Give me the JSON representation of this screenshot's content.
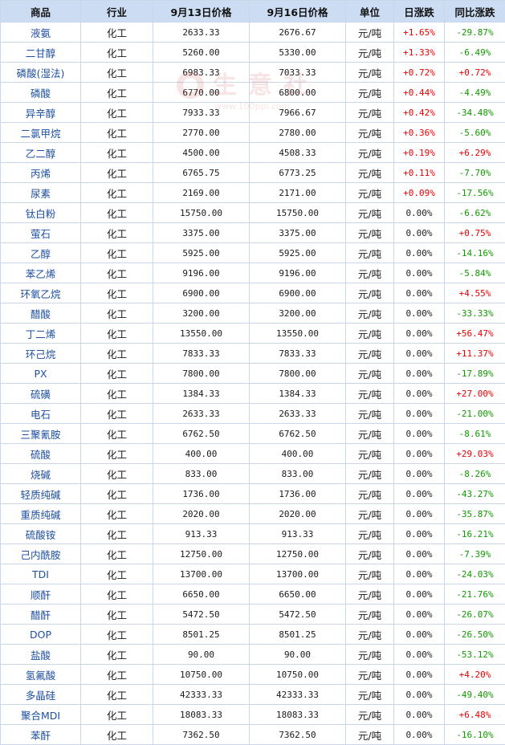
{
  "headers": [
    "商品",
    "行业",
    "9月13日价格",
    "9月16日价格",
    "单位",
    "日涨跌",
    "同比涨跌"
  ],
  "watermark": {
    "brand": "生意社",
    "url": "www.100ppi.com"
  },
  "colors": {
    "up": "#e60000",
    "down": "#109900",
    "header_bg": "#ccddf3",
    "border": "#c9d6e8",
    "name": "#1e4fa0"
  },
  "rows": [
    {
      "name": "液氨",
      "industry": "化工",
      "price_a": "2633.33",
      "price_b": "2676.67",
      "unit": "元/吨",
      "day": "+1.65%",
      "yoy": "-29.87%"
    },
    {
      "name": "二甘醇",
      "industry": "化工",
      "price_a": "5260.00",
      "price_b": "5330.00",
      "unit": "元/吨",
      "day": "+1.33%",
      "yoy": "-6.49%"
    },
    {
      "name": "磷酸(湿法)",
      "industry": "化工",
      "price_a": "6983.33",
      "price_b": "7033.33",
      "unit": "元/吨",
      "day": "+0.72%",
      "yoy": "+0.72%"
    },
    {
      "name": "磷酸",
      "industry": "化工",
      "price_a": "6770.00",
      "price_b": "6800.00",
      "unit": "元/吨",
      "day": "+0.44%",
      "yoy": "-4.49%"
    },
    {
      "name": "异辛醇",
      "industry": "化工",
      "price_a": "7933.33",
      "price_b": "7966.67",
      "unit": "元/吨",
      "day": "+0.42%",
      "yoy": "-34.48%"
    },
    {
      "name": "二氯甲烷",
      "industry": "化工",
      "price_a": "2770.00",
      "price_b": "2780.00",
      "unit": "元/吨",
      "day": "+0.36%",
      "yoy": "-5.60%"
    },
    {
      "name": "乙二醇",
      "industry": "化工",
      "price_a": "4500.00",
      "price_b": "4508.33",
      "unit": "元/吨",
      "day": "+0.19%",
      "yoy": "+6.29%"
    },
    {
      "name": "丙烯",
      "industry": "化工",
      "price_a": "6765.75",
      "price_b": "6773.25",
      "unit": "元/吨",
      "day": "+0.11%",
      "yoy": "-7.70%"
    },
    {
      "name": "尿素",
      "industry": "化工",
      "price_a": "2169.00",
      "price_b": "2171.00",
      "unit": "元/吨",
      "day": "+0.09%",
      "yoy": "-17.56%"
    },
    {
      "name": "钛白粉",
      "industry": "化工",
      "price_a": "15750.00",
      "price_b": "15750.00",
      "unit": "元/吨",
      "day": "0.00%",
      "yoy": "-6.62%"
    },
    {
      "name": "萤石",
      "industry": "化工",
      "price_a": "3375.00",
      "price_b": "3375.00",
      "unit": "元/吨",
      "day": "0.00%",
      "yoy": "+0.75%"
    },
    {
      "name": "乙醇",
      "industry": "化工",
      "price_a": "5925.00",
      "price_b": "5925.00",
      "unit": "元/吨",
      "day": "0.00%",
      "yoy": "-14.16%"
    },
    {
      "name": "苯乙烯",
      "industry": "化工",
      "price_a": "9196.00",
      "price_b": "9196.00",
      "unit": "元/吨",
      "day": "0.00%",
      "yoy": "-5.84%"
    },
    {
      "name": "环氧乙烷",
      "industry": "化工",
      "price_a": "6900.00",
      "price_b": "6900.00",
      "unit": "元/吨",
      "day": "0.00%",
      "yoy": "+4.55%"
    },
    {
      "name": "醋酸",
      "industry": "化工",
      "price_a": "3200.00",
      "price_b": "3200.00",
      "unit": "元/吨",
      "day": "0.00%",
      "yoy": "-33.33%"
    },
    {
      "name": "丁二烯",
      "industry": "化工",
      "price_a": "13550.00",
      "price_b": "13550.00",
      "unit": "元/吨",
      "day": "0.00%",
      "yoy": "+56.47%"
    },
    {
      "name": "环己烷",
      "industry": "化工",
      "price_a": "7833.33",
      "price_b": "7833.33",
      "unit": "元/吨",
      "day": "0.00%",
      "yoy": "+11.37%"
    },
    {
      "name": "PX",
      "industry": "化工",
      "price_a": "7800.00",
      "price_b": "7800.00",
      "unit": "元/吨",
      "day": "0.00%",
      "yoy": "-17.89%"
    },
    {
      "name": "硫磺",
      "industry": "化工",
      "price_a": "1384.33",
      "price_b": "1384.33",
      "unit": "元/吨",
      "day": "0.00%",
      "yoy": "+27.00%"
    },
    {
      "name": "电石",
      "industry": "化工",
      "price_a": "2633.33",
      "price_b": "2633.33",
      "unit": "元/吨",
      "day": "0.00%",
      "yoy": "-21.00%"
    },
    {
      "name": "三聚氰胺",
      "industry": "化工",
      "price_a": "6762.50",
      "price_b": "6762.50",
      "unit": "元/吨",
      "day": "0.00%",
      "yoy": "-8.61%"
    },
    {
      "name": "硫酸",
      "industry": "化工",
      "price_a": "400.00",
      "price_b": "400.00",
      "unit": "元/吨",
      "day": "0.00%",
      "yoy": "+29.03%"
    },
    {
      "name": "烧碱",
      "industry": "化工",
      "price_a": "833.00",
      "price_b": "833.00",
      "unit": "元/吨",
      "day": "0.00%",
      "yoy": "-8.26%"
    },
    {
      "name": "轻质纯碱",
      "industry": "化工",
      "price_a": "1736.00",
      "price_b": "1736.00",
      "unit": "元/吨",
      "day": "0.00%",
      "yoy": "-43.27%"
    },
    {
      "name": "重质纯碱",
      "industry": "化工",
      "price_a": "2020.00",
      "price_b": "2020.00",
      "unit": "元/吨",
      "day": "0.00%",
      "yoy": "-35.87%"
    },
    {
      "name": "硫酸铵",
      "industry": "化工",
      "price_a": "913.33",
      "price_b": "913.33",
      "unit": "元/吨",
      "day": "0.00%",
      "yoy": "-16.21%"
    },
    {
      "name": "己内酰胺",
      "industry": "化工",
      "price_a": "12750.00",
      "price_b": "12750.00",
      "unit": "元/吨",
      "day": "0.00%",
      "yoy": "-7.39%"
    },
    {
      "name": "TDI",
      "industry": "化工",
      "price_a": "13700.00",
      "price_b": "13700.00",
      "unit": "元/吨",
      "day": "0.00%",
      "yoy": "-24.03%"
    },
    {
      "name": "顺酐",
      "industry": "化工",
      "price_a": "6650.00",
      "price_b": "6650.00",
      "unit": "元/吨",
      "day": "0.00%",
      "yoy": "-21.76%"
    },
    {
      "name": "醋酐",
      "industry": "化工",
      "price_a": "5472.50",
      "price_b": "5472.50",
      "unit": "元/吨",
      "day": "0.00%",
      "yoy": "-26.07%"
    },
    {
      "name": "DOP",
      "industry": "化工",
      "price_a": "8501.25",
      "price_b": "8501.25",
      "unit": "元/吨",
      "day": "0.00%",
      "yoy": "-26.50%"
    },
    {
      "name": "盐酸",
      "industry": "化工",
      "price_a": "90.00",
      "price_b": "90.00",
      "unit": "元/吨",
      "day": "0.00%",
      "yoy": "-53.12%"
    },
    {
      "name": "氢氟酸",
      "industry": "化工",
      "price_a": "10750.00",
      "price_b": "10750.00",
      "unit": "元/吨",
      "day": "0.00%",
      "yoy": "+4.20%"
    },
    {
      "name": "多晶硅",
      "industry": "化工",
      "price_a": "42333.33",
      "price_b": "42333.33",
      "unit": "元/吨",
      "day": "0.00%",
      "yoy": "-49.40%"
    },
    {
      "name": "聚合MDI",
      "industry": "化工",
      "price_a": "18083.33",
      "price_b": "18083.33",
      "unit": "元/吨",
      "day": "0.00%",
      "yoy": "+6.48%"
    },
    {
      "name": "苯酐",
      "industry": "化工",
      "price_a": "7362.50",
      "price_b": "7362.50",
      "unit": "元/吨",
      "day": "0.00%",
      "yoy": "-16.10%"
    }
  ]
}
